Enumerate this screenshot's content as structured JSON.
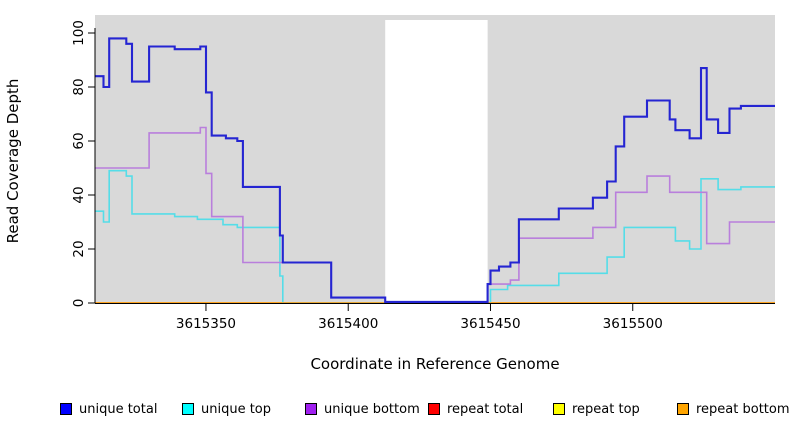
{
  "axis": {
    "x_label": "Coordinate in Reference Genome",
    "y_label": "Read Coverage Depth"
  },
  "legend": {
    "items": [
      {
        "label": "unique total",
        "color": "#0000ff"
      },
      {
        "label": "unique top",
        "color": "#00ffff"
      },
      {
        "label": "unique bottom",
        "color": "#a020f0"
      },
      {
        "label": "repeat total",
        "color": "#ff0000"
      },
      {
        "label": "repeat top",
        "color": "#ffff00"
      },
      {
        "label": "repeat bottom",
        "color": "#ffa500"
      }
    ]
  },
  "chart_data": {
    "type": "line",
    "subtype": "step",
    "title": "",
    "xlabel": "Coordinate in Reference Genome",
    "ylabel": "Read Coverage Depth",
    "xlim": [
      3615311,
      3615550
    ],
    "ylim": [
      0,
      106.7
    ],
    "x_ticks": [
      3615350,
      3615400,
      3615450,
      3615500
    ],
    "y_ticks": [
      0,
      20,
      40,
      60,
      80,
      100
    ],
    "panel_color": "#d9d9d9",
    "background_color": "#ffffff",
    "no_data_gap": {
      "x_start": 3615413,
      "x_end": 3615449,
      "color": "#ffffff"
    },
    "grid": false,
    "legend_position": "bottom",
    "series": [
      {
        "name": "repeat total",
        "line_color": "#ff0000",
        "line_width": 1.5,
        "paths": [
          [
            [
              3615311,
              0
            ],
            [
              3615413,
              0
            ]
          ],
          [
            [
              3615449,
              0
            ],
            [
              3615550,
              0
            ]
          ]
        ]
      },
      {
        "name": "repeat top",
        "line_color": "#ffff00",
        "line_width": 1.5,
        "paths": [
          [
            [
              3615311,
              0
            ],
            [
              3615413,
              0
            ]
          ],
          [
            [
              3615449,
              0
            ],
            [
              3615550,
              0
            ]
          ]
        ]
      },
      {
        "name": "unique top",
        "line_color": "#55dde8",
        "line_width": 1.6,
        "paths": [
          [
            [
              3615311,
              34
            ],
            [
              3615314,
              30
            ],
            [
              3615316,
              49
            ],
            [
              3615322,
              47
            ],
            [
              3615324,
              33
            ],
            [
              3615339,
              32
            ],
            [
              3615347,
              31
            ],
            [
              3615356,
              29
            ],
            [
              3615361,
              28
            ],
            [
              3615376,
              10
            ],
            [
              3615377,
              0
            ],
            [
              3615413,
              0
            ]
          ],
          [
            [
              3615449,
              0
            ],
            [
              3615450,
              5
            ],
            [
              3615456,
              6.5
            ],
            [
              3615474,
              11
            ],
            [
              3615491,
              17
            ],
            [
              3615497,
              28
            ],
            [
              3615515,
              23
            ],
            [
              3615520,
              20
            ],
            [
              3615524,
              46
            ],
            [
              3615530,
              42
            ],
            [
              3615538,
              43
            ],
            [
              3615550,
              43
            ]
          ]
        ]
      },
      {
        "name": "repeat bottom",
        "line_color": "#ff9e1b",
        "line_width": 1.6,
        "paths": [
          [
            [
              3615311,
              0
            ],
            [
              3615413,
              0
            ]
          ],
          [
            [
              3615449,
              0
            ],
            [
              3615550,
              0
            ]
          ]
        ]
      },
      {
        "name": "unique bottom",
        "line_color": "#b97fdc",
        "line_width": 1.6,
        "paths": [
          [
            [
              3615311,
              50
            ],
            [
              3615330,
              63
            ],
            [
              3615348,
              65
            ],
            [
              3615350,
              48
            ],
            [
              3615352,
              32
            ],
            [
              3615363,
              15
            ],
            [
              3615394,
              2
            ],
            [
              3615413,
              0.3
            ],
            [
              3615449,
              7
            ],
            [
              3615457,
              8.5
            ],
            [
              3615460,
              24
            ],
            [
              3615486,
              28
            ],
            [
              3615494,
              41
            ],
            [
              3615505,
              47
            ],
            [
              3615513,
              41
            ],
            [
              3615526,
              22
            ],
            [
              3615534,
              30
            ],
            [
              3615550,
              30
            ]
          ]
        ]
      },
      {
        "name": "unique total",
        "line_color": "#2525d2",
        "line_width": 2.1,
        "paths": [
          [
            [
              3615311,
              84
            ],
            [
              3615314,
              80
            ],
            [
              3615316,
              98
            ],
            [
              3615322,
              96
            ],
            [
              3615324,
              82
            ],
            [
              3615330,
              95
            ],
            [
              3615339,
              94
            ],
            [
              3615348,
              95
            ],
            [
              3615350,
              78
            ],
            [
              3615352,
              62
            ],
            [
              3615357,
              61
            ],
            [
              3615361,
              60
            ],
            [
              3615363,
              43
            ],
            [
              3615376,
              25
            ],
            [
              3615377,
              15
            ],
            [
              3615394,
              2
            ],
            [
              3615413,
              0.4
            ],
            [
              3615449,
              7
            ],
            [
              3615450,
              12
            ],
            [
              3615453,
              13.5
            ],
            [
              3615457,
              15
            ],
            [
              3615460,
              31
            ],
            [
              3615474,
              35
            ],
            [
              3615486,
              39
            ],
            [
              3615491,
              45
            ],
            [
              3615494,
              58
            ],
            [
              3615497,
              69
            ],
            [
              3615505,
              75
            ],
            [
              3615513,
              68
            ],
            [
              3615515,
              64
            ],
            [
              3615520,
              61
            ],
            [
              3615524,
              87
            ],
            [
              3615526,
              68
            ],
            [
              3615530,
              63
            ],
            [
              3615534,
              72
            ],
            [
              3615538,
              73
            ],
            [
              3615550,
              73
            ]
          ]
        ]
      }
    ]
  }
}
